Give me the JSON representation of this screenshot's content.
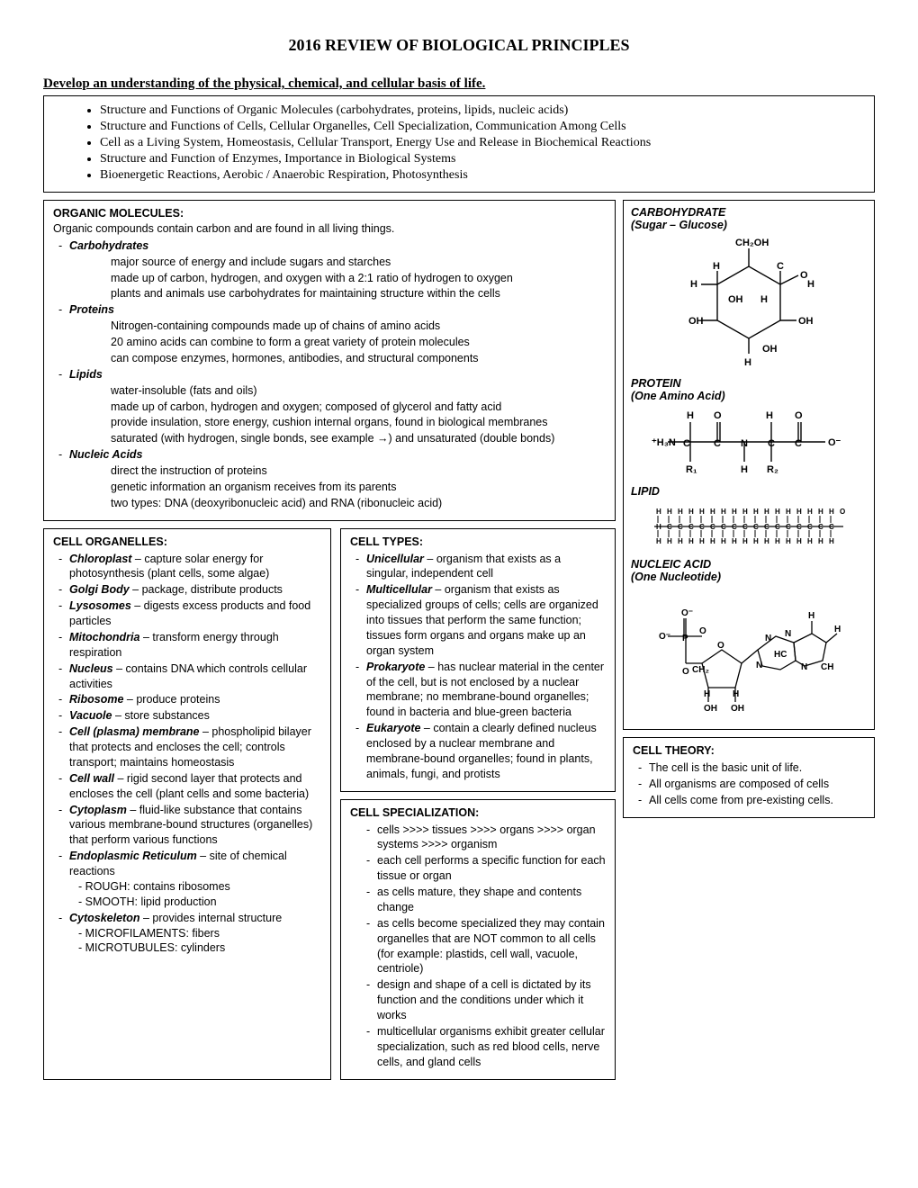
{
  "title": "2016 REVIEW OF BIOLOGICAL PRINCIPLES",
  "subheading": "Develop an understanding of the physical, chemical, and cellular basis of life.",
  "intro": [
    "Structure and Functions of Organic Molecules (carbohydrates, proteins, lipids, nucleic acids)",
    "Structure and Functions of Cells, Cellular Organelles, Cell Specialization, Communication Among Cells",
    "Cell as a Living System, Homeostasis, Cellular Transport, Energy Use and Release in Biochemical Reactions",
    "Structure and Function of Enzymes, Importance in Biological Systems",
    "Bioenergetic Reactions, Aerobic / Anaerobic Respiration, Photosynthesis"
  ],
  "organic": {
    "heading": "ORGANIC MOLECULES:",
    "lead": "Organic compounds contain carbon and are found in all living things.",
    "carb_name": "Carbohydrates",
    "carb_lines": [
      "major source of energy and include sugars and starches",
      "made up of carbon, hydrogen, and oxygen with a 2:1 ratio of hydrogen to oxygen",
      "plants and animals use carbohydrates for maintaining structure within the cells"
    ],
    "prot_name": "Proteins",
    "prot_lines": [
      "Nitrogen-containing compounds made up of chains of amino acids",
      "20 amino acids can combine to form a great variety of protein molecules",
      "can compose enzymes, hormones, antibodies, and structural components"
    ],
    "lip_name": "Lipids",
    "lip_lines": [
      "water-insoluble (fats and oils)",
      "made up of carbon, hydrogen and oxygen; composed of glycerol and fatty acid",
      "provide insulation, store energy, cushion internal organs, found in biological membranes",
      "saturated (with hydrogen, single bonds, see example →) and unsaturated (double bonds)"
    ],
    "nuc_name": "Nucleic Acids",
    "nuc_lines": [
      "direct the instruction of proteins",
      "genetic information an organism receives from its parents",
      "two types: DNA (deoxyribonucleic acid) and RNA (ribonucleic acid)"
    ]
  },
  "organelles": {
    "heading": "CELL ORGANELLES:",
    "items": [
      {
        "name": "Chloroplast",
        "desc": " – capture solar energy for photosynthesis (plant cells, some algae)"
      },
      {
        "name": "Golgi Body",
        "desc": " – package, distribute products"
      },
      {
        "name": "Lysosomes",
        "desc": " – digests excess products and food particles"
      },
      {
        "name": "Mitochondria",
        "desc": " – transform energy through respiration"
      },
      {
        "name": "Nucleus",
        "desc": " – contains DNA which controls cellular activities"
      },
      {
        "name": "Ribosome",
        "desc": " – produce proteins"
      },
      {
        "name": "Vacuole",
        "desc": " – store substances"
      },
      {
        "name": "Cell (plasma) membrane",
        "desc": " – phospholipid bilayer that protects and encloses the cell; controls transport; maintains homeostasis"
      },
      {
        "name": "Cell wall",
        "desc": " – rigid second layer that protects and encloses the cell (plant cells and some bacteria)"
      },
      {
        "name": "Cytoplasm",
        "desc": " – fluid-like substance that contains various membrane-bound structures (organelles) that perform various functions"
      },
      {
        "name": "Endoplasmic Reticulum",
        "desc": " – site of chemical reactions",
        "sublines": [
          "- ROUGH: contains ribosomes",
          "- SMOOTH: lipid production"
        ]
      },
      {
        "name": "Cytoskeleton",
        "desc": " – provides internal structure",
        "sublines": [
          "- MICROFILAMENTS: fibers",
          "- MICROTUBULES: cylinders"
        ]
      }
    ]
  },
  "celltypes": {
    "heading": "CELL TYPES:",
    "items": [
      {
        "name": "Unicellular",
        "desc": " – organism that exists as a singular, independent cell"
      },
      {
        "name": "Multicellular",
        "desc": " – organism that exists as specialized groups of cells; cells are organized into tissues that perform the same function; tissues form organs and organs make up an organ system"
      },
      {
        "name": "Prokaryote",
        "desc": " – has nuclear material in the center of the cell, but is not enclosed by a nuclear membrane; no membrane-bound organelles; found in bacteria and blue-green bacteria"
      },
      {
        "name": "Eukaryote",
        "desc": " – contain a clearly defined nucleus enclosed by a nuclear membrane and membrane-bound organelles; found in plants, animals, fungi, and protists"
      }
    ]
  },
  "celltheory": {
    "heading": "CELL THEORY:",
    "items": [
      "The cell is the basic unit of life.",
      "All organisms are composed of cells",
      "All cells come from pre-existing cells."
    ]
  },
  "specialization": {
    "heading": "CELL SPECIALIZATION:",
    "items": [
      "cells  >>>>  tissues  >>>>  organs  >>>>  organ systems  >>>>  organism",
      "each cell performs a specific function for each tissue or organ",
      "as cells mature, they shape and contents change",
      "as cells become specialized they may contain organelles that are NOT common to all cells (for example:  plastids, cell wall, vacuole, centriole)",
      "design and shape of a cell is dictated by its function and the conditions under which it works",
      "multicellular organisms exhibit greater cellular specialization, such as red blood cells, nerve cells, and gland cells"
    ]
  },
  "diagrams": {
    "carb_title": "CARBOHYDRATE",
    "carb_sub": "(Sugar – Glucose)",
    "prot_title": "PROTEIN",
    "prot_sub": "(One Amino Acid)",
    "lip_title": "LIPID",
    "nuc_title": "NUCLEIC ACID",
    "nuc_sub": "(One Nucleotide)"
  },
  "style": {
    "page_bg": "#ffffff",
    "text_color": "#000000",
    "border_color": "#000000",
    "body_font": "Arial",
    "heading_font": "Georgia",
    "title_fontsize": 18,
    "subheading_fontsize": 15,
    "body_fontsize": 13,
    "box_fontsize": 12.5,
    "svg_stroke": "#000000",
    "svg_stroke_width": 1.4
  }
}
